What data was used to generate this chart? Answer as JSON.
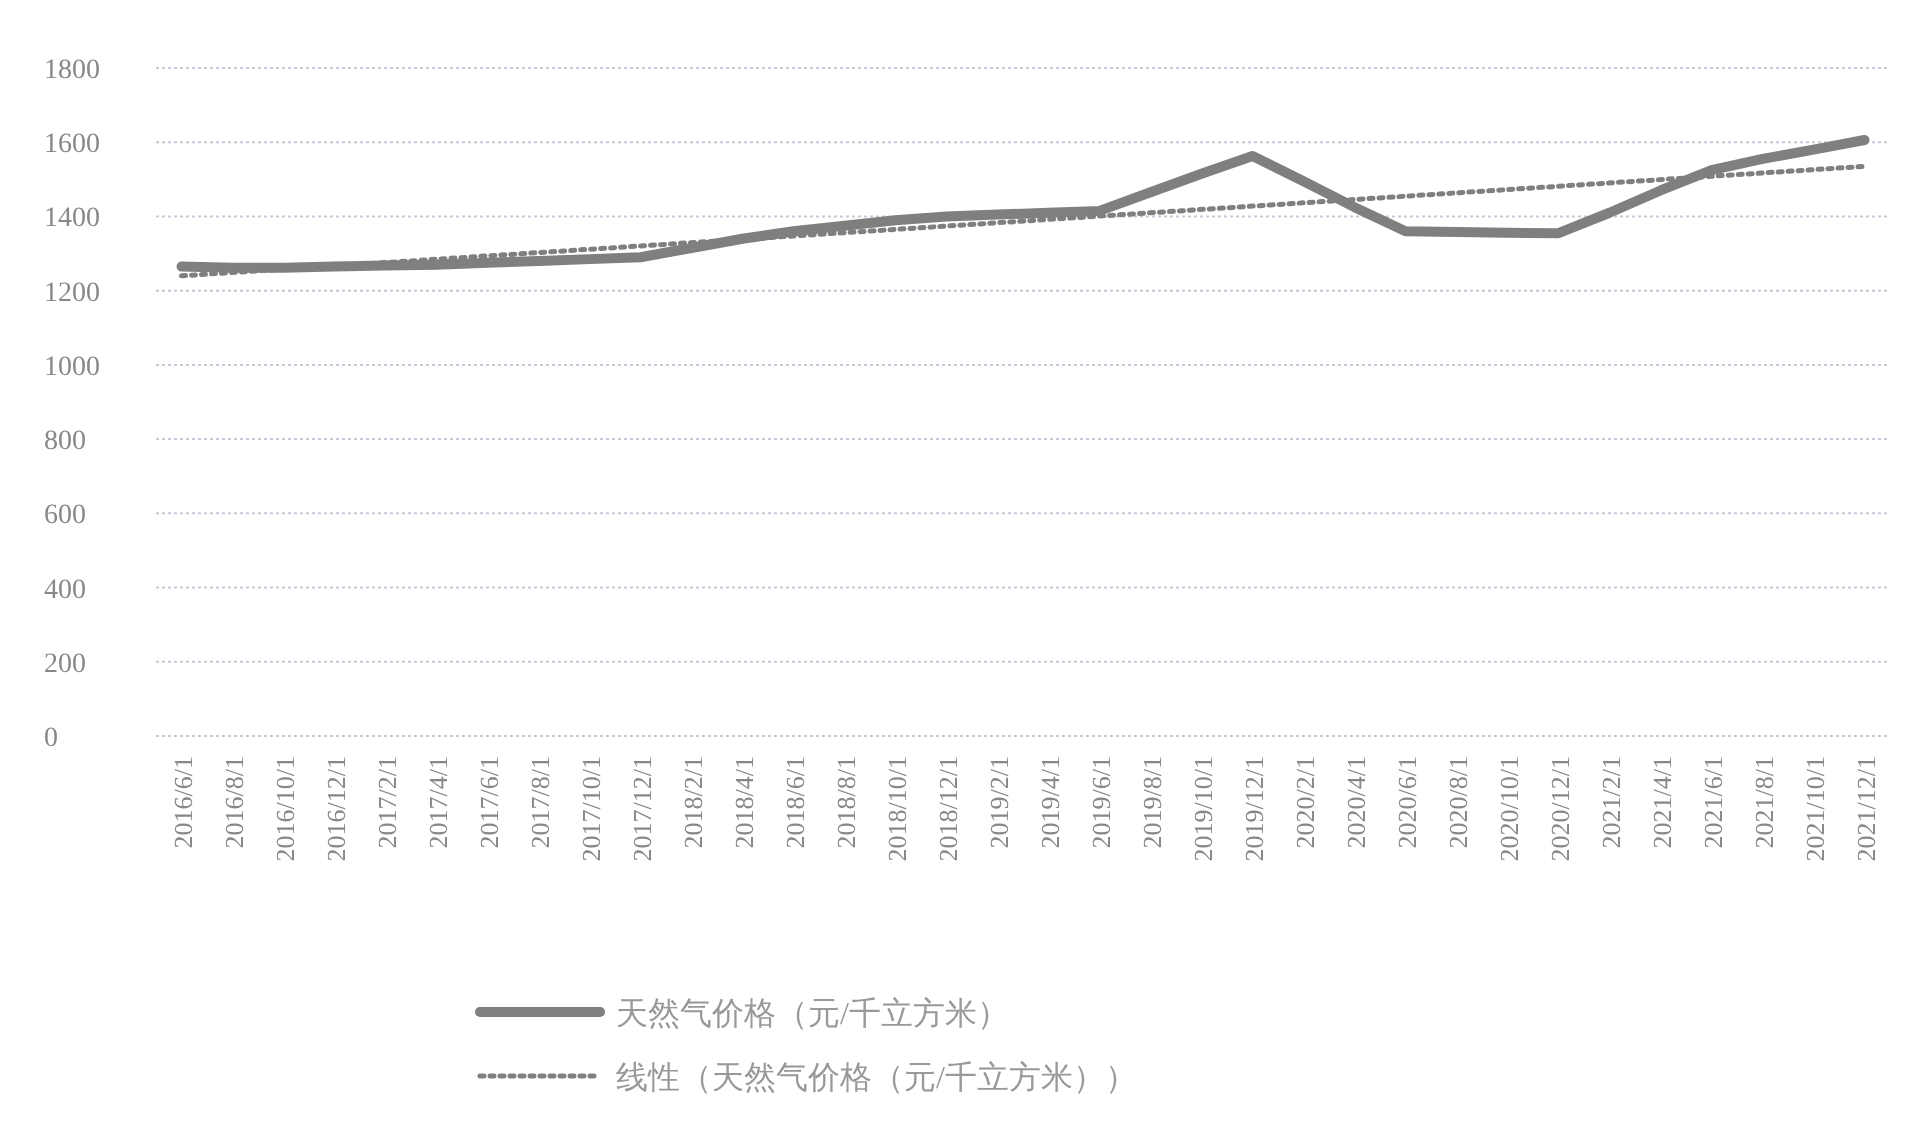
{
  "chart_data": {
    "type": "line",
    "categories": [
      "2016/6/1",
      "2016/8/1",
      "2016/10/1",
      "2016/12/1",
      "2017/2/1",
      "2017/4/1",
      "2017/6/1",
      "2017/8/1",
      "2017/10/1",
      "2017/12/1",
      "2018/2/1",
      "2018/4/1",
      "2018/6/1",
      "2018/8/1",
      "2018/10/1",
      "2018/12/1",
      "2019/2/1",
      "2019/4/1",
      "2019/6/1",
      "2019/8/1",
      "2019/10/1",
      "2019/12/1",
      "2020/2/1",
      "2020/4/1",
      "2020/6/1",
      "2020/8/1",
      "2020/10/1",
      "2020/12/1",
      "2021/2/1",
      "2021/4/1",
      "2021/6/1",
      "2021/8/1",
      "2021/10/1",
      "2021/12/1"
    ],
    "series": [
      {
        "name": "天然气价格（元/千立方米）",
        "color": "#7f7f7f",
        "line_style": "solid",
        "values": [
          1265,
          1262,
          1262,
          1265,
          1268,
          1270,
          1275,
          1280,
          1285,
          1290,
          1315,
          1340,
          1360,
          1375,
          1390,
          1400,
          1405,
          1410,
          1415,
          1465,
          1515,
          1563,
          1495,
          1425,
          1360,
          1358,
          1356,
          1355,
          1410,
          1470,
          1525,
          1555,
          1580,
          1606
        ]
      },
      {
        "name": "线性（天然气价格（元/千立方米））",
        "type": "line",
        "color": "#7f7f7f",
        "line_style": "dotted",
        "x": [
          "2016/6/1",
          "2021/12/1"
        ],
        "values": [
          1240,
          1535
        ]
      }
    ],
    "ylim": [
      0,
      1800
    ],
    "yticks": [
      0,
      200,
      400,
      600,
      800,
      1000,
      1200,
      1400,
      1600,
      1800
    ],
    "grid": "y",
    "legend": "bottom"
  }
}
